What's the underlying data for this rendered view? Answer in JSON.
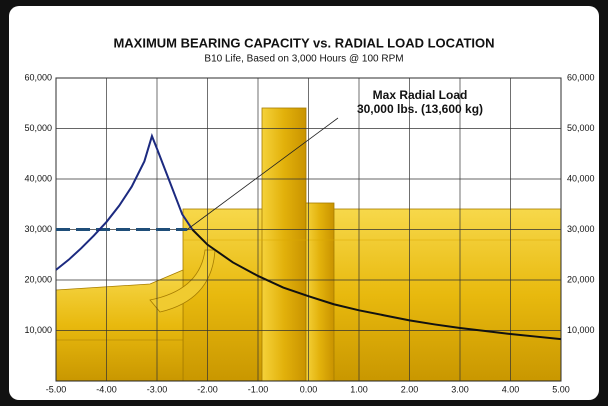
{
  "chart_data": {
    "type": "line",
    "title": "MAXIMUM BEARING CAPACITY vs. RADIAL LOAD LOCATION",
    "subtitle": "B10 Life, Based on 3,000 Hours @ 100 RPM",
    "annotation": [
      "Max Radial Load",
      "30,000 lbs. (13,600 kg)"
    ],
    "annotation_point": {
      "x": -2.4,
      "y": 30000
    },
    "reference_line": {
      "value": 30000,
      "x": [
        -5,
        -2.4
      ],
      "color": "#1f4e79",
      "dashed": true
    },
    "series": [
      {
        "color": "#1c2a80",
        "x": [
          -5,
          -4.75,
          -4.5,
          -4.25,
          -4,
          -3.75,
          -3.5,
          -3.25,
          -3.1,
          -3,
          -2.75,
          -2.5,
          -2.3
        ],
        "values": [
          22000,
          24000,
          26300,
          28800,
          31500,
          34700,
          38500,
          43500,
          48500,
          46000,
          39500,
          33000,
          30000
        ]
      },
      {
        "color": "#111111",
        "x": [
          -2.3,
          -2,
          -1.5,
          -1,
          -0.5,
          0,
          0.5,
          1,
          1.5,
          2,
          2.5,
          3,
          3.5,
          4,
          4.5,
          5
        ],
        "values": [
          30000,
          27000,
          23500,
          20800,
          18500,
          16800,
          15200,
          14000,
          13000,
          12000,
          11200,
          10500,
          9900,
          9300,
          8800,
          8300
        ]
      }
    ],
    "xlim": [
      -5,
      5
    ],
    "xticks": [
      {
        "value": -5,
        "label": "-5.00"
      },
      {
        "value": -4,
        "label": "-4.00"
      },
      {
        "value": -3,
        "label": "-3.00"
      },
      {
        "value": -2,
        "label": "-2.00"
      },
      {
        "value": -1,
        "label": "-1.00"
      },
      {
        "value": 0,
        "label": "0.00"
      },
      {
        "value": 1,
        "label": "1.00"
      },
      {
        "value": 2,
        "label": "2.00"
      },
      {
        "value": 3,
        "label": "3.00"
      },
      {
        "value": 4,
        "label": "4.00"
      },
      {
        "value": 5,
        "label": "5.00"
      }
    ],
    "ylim": [
      0,
      60000
    ],
    "yticks": [
      {
        "value": 10000,
        "label": "10,000"
      },
      {
        "value": 20000,
        "label": "20,000"
      },
      {
        "value": 30000,
        "label": "30,000"
      },
      {
        "value": 40000,
        "label": "40,000"
      },
      {
        "value": 50000,
        "label": "50,000"
      },
      {
        "value": 60000,
        "label": "60,000"
      }
    ],
    "y2lim": [
      0,
      60000
    ],
    "y2ticks": [
      {
        "value": 10000,
        "label": "10,000"
      },
      {
        "value": 20000,
        "label": "20,000"
      },
      {
        "value": 30000,
        "label": "30,000"
      },
      {
        "value": 40000,
        "label": "40,000"
      },
      {
        "value": 50000,
        "label": "50,000"
      },
      {
        "value": 60000,
        "label": "60,000"
      }
    ],
    "grid": true
  }
}
